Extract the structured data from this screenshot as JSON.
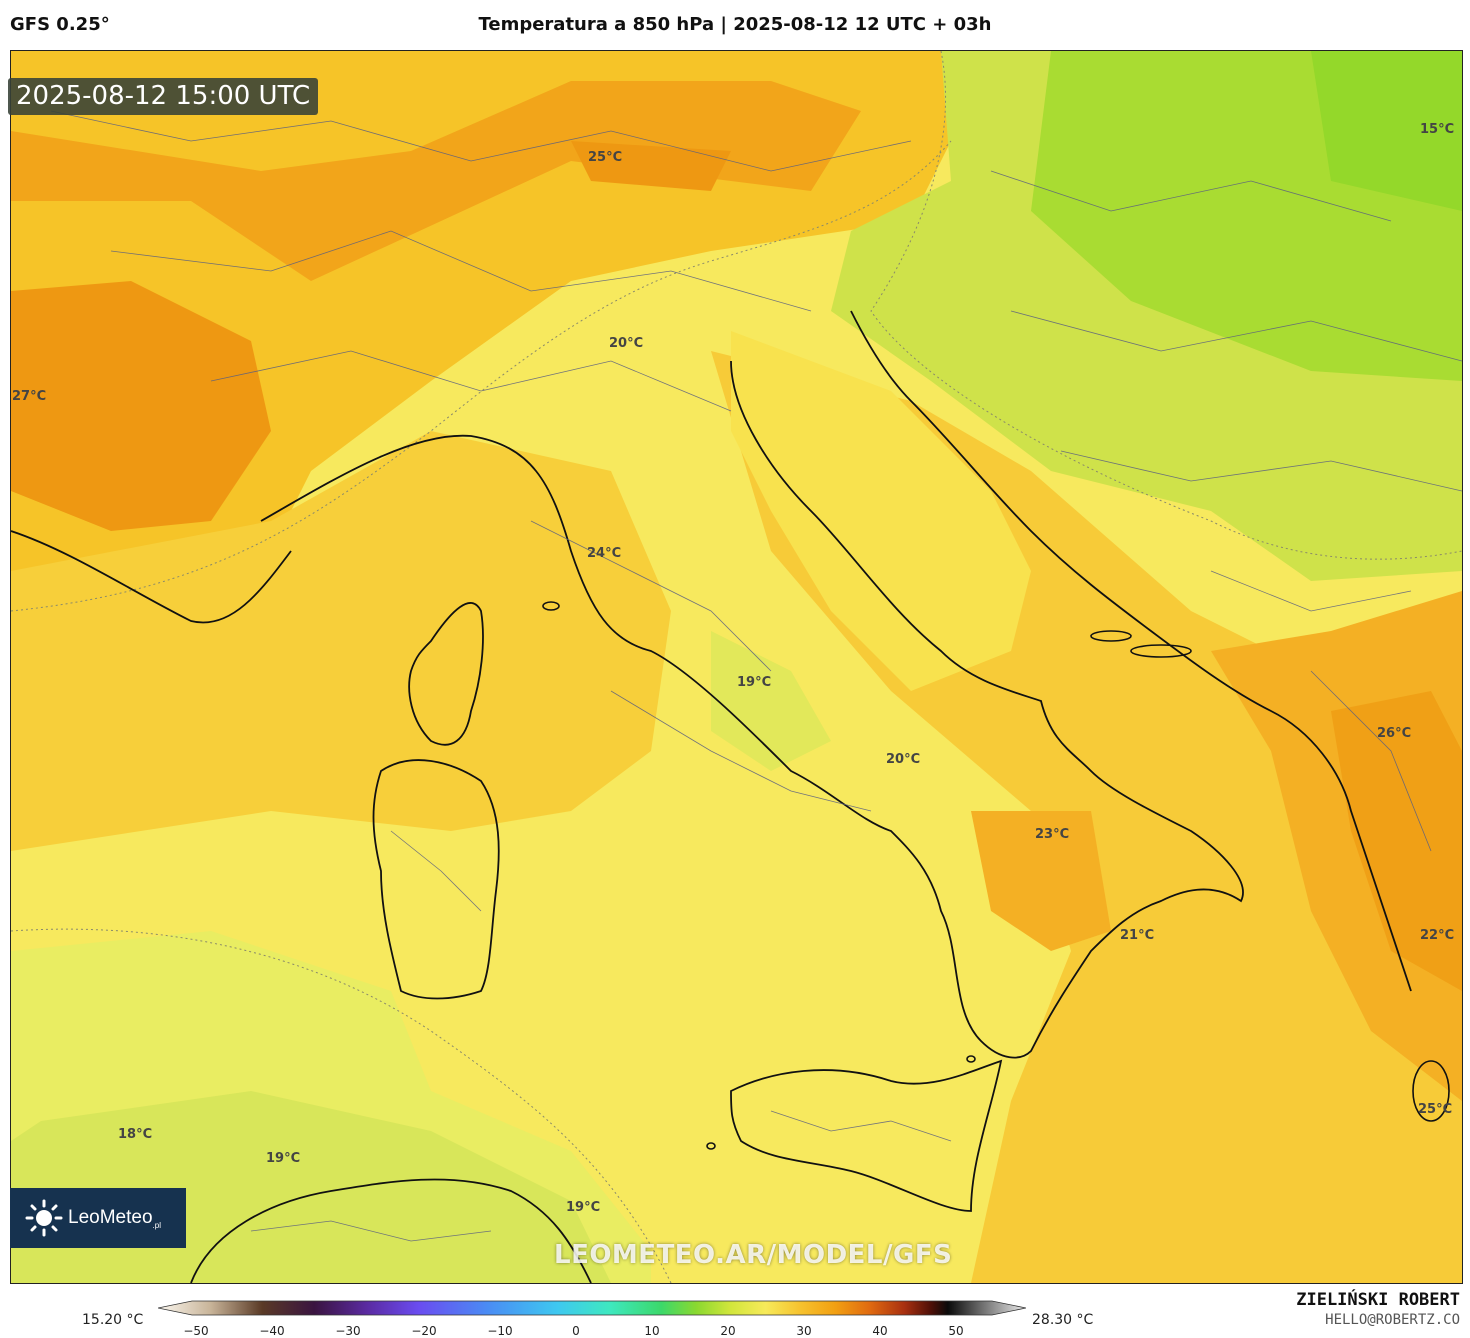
{
  "header": {
    "model": "GFS 0.25°",
    "title": "Temperatura a 850 hPa | 2025-08-12 12 UTC + 03h"
  },
  "map": {
    "valid_time": "2025-08-12 15:00 UTC",
    "watermark": "LEOMETEO.AR/MODEL/GFS",
    "labels": [
      "15°C",
      "25°C",
      "27°C",
      "20°C",
      "24°C",
      "19°C",
      "20°C",
      "23°C",
      "26°C",
      "21°C",
      "22°C",
      "25°C",
      "18°C",
      "19°C",
      "19°C"
    ]
  },
  "logo": {
    "name": "LeoMeteo",
    "suffix": ".pl"
  },
  "colorbar": {
    "min_label": "15.20 °C",
    "max_label": "28.30 °C",
    "ticks": [
      "−50",
      "−40",
      "−30",
      "−20",
      "−10",
      "0",
      "10",
      "20",
      "30",
      "40",
      "50"
    ]
  },
  "footer": {
    "author": "ZIELIŃSKI ROBERT",
    "email": "HELLO@ROBERTZ.CO"
  },
  "colors": {
    "cool": "#9fdc3a",
    "mild": "#f7ea5a",
    "warm": "#f6c22e",
    "hot": "#f2a012",
    "hottest": "#e8860a"
  }
}
